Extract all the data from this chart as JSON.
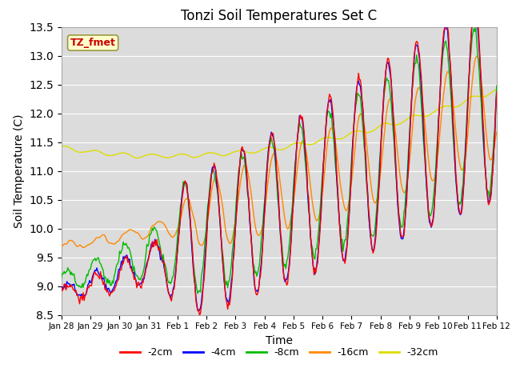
{
  "title": "Tonzi Soil Temperatures Set C",
  "xlabel": "Time",
  "ylabel": "Soil Temperature (C)",
  "ylim": [
    8.5,
    13.5
  ],
  "annotation": "TZ_fmet",
  "legend_labels": [
    "-2cm",
    "-4cm",
    "-8cm",
    "-16cm",
    "-32cm"
  ],
  "legend_colors": [
    "#ff0000",
    "#0000ff",
    "#00bb00",
    "#ff8800",
    "#dddd00"
  ],
  "bg_color": "#dcdcdc",
  "line_width": 1.0,
  "xtick_labels": [
    "Jan 28",
    "Jan 29",
    "Jan 30",
    "Jan 31",
    "Feb 1",
    "Feb 2",
    "Feb 3",
    "Feb 4",
    "Feb 5",
    "Feb 6",
    "Feb 7",
    "Feb 8",
    "Feb 9",
    "Feb 10",
    "Feb 11",
    "Feb 12"
  ],
  "n_points": 480
}
